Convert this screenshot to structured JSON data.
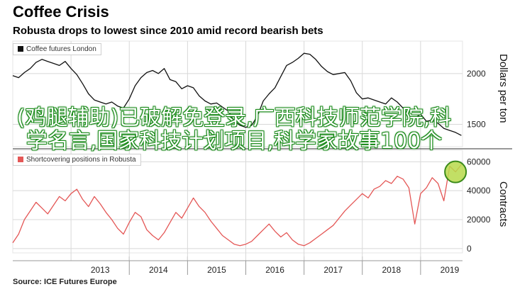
{
  "header": {
    "title": "Coffee Crisis",
    "subtitle": "Robusta drops to lowest since 2010 amid record bearish bets"
  },
  "source": "Source: ICE Futures Europe",
  "watermark": "(鸡腿辅助)已破解免登录,广西科技师范学院,科学名言,国家科技计划项目,科学家故事100个",
  "colors": {
    "top_line": "#111111",
    "bottom_line": "#e45756",
    "grid": "#d8d8d8",
    "marker_fill": "#b7d94a",
    "marker_stroke": "#3a8a1a"
  },
  "chart_data": [
    {
      "type": "line",
      "legend": "Coffee futures London",
      "ylabel": "Dollars per ton",
      "ylim": [
        1280,
        2320
      ],
      "yticks": [
        1500,
        2000
      ],
      "xlim": [
        2012.0,
        2019.72
      ],
      "xticks": [
        "2013",
        "2014",
        "2015",
        "2016",
        "2017",
        "2018",
        "2019"
      ],
      "grid": true,
      "series": [
        {
          "x": [
            2012.0,
            2012.1,
            2012.2,
            2012.3,
            2012.4,
            2012.5,
            2012.6,
            2012.7,
            2012.8,
            2012.9,
            2013.0,
            2013.1,
            2013.2,
            2013.3,
            2013.4,
            2013.5,
            2013.6,
            2013.7,
            2013.8,
            2013.9,
            2014.0,
            2014.1,
            2014.2,
            2014.3,
            2014.4,
            2014.5,
            2014.6,
            2014.7,
            2014.8,
            2014.9,
            2015.0,
            2015.1,
            2015.2,
            2015.3,
            2015.4,
            2015.5,
            2015.6,
            2015.7,
            2015.8,
            2015.9,
            2016.0,
            2016.1,
            2016.2,
            2016.3,
            2016.4,
            2016.5,
            2016.6,
            2016.7,
            2016.8,
            2016.9,
            2017.0,
            2017.1,
            2017.2,
            2017.3,
            2017.4,
            2017.5,
            2017.6,
            2017.7,
            2017.8,
            2017.9,
            2018.0,
            2018.1,
            2018.2,
            2018.3,
            2018.4,
            2018.5,
            2018.6,
            2018.7,
            2018.8,
            2018.9,
            2019.0,
            2019.1,
            2019.2,
            2019.3,
            2019.4,
            2019.5,
            2019.6,
            2019.7
          ],
          "y": [
            1980,
            1960,
            2010,
            2050,
            2110,
            2140,
            2120,
            2100,
            2080,
            2120,
            2050,
            1990,
            1900,
            1800,
            1740,
            1720,
            1700,
            1720,
            1680,
            1660,
            1750,
            1880,
            1960,
            2010,
            2030,
            2000,
            2050,
            1940,
            1920,
            1850,
            1880,
            1860,
            1780,
            1730,
            1700,
            1710,
            1670,
            1630,
            1530,
            1490,
            1470,
            1490,
            1580,
            1730,
            1800,
            1860,
            1970,
            2080,
            2110,
            2150,
            2200,
            2190,
            2140,
            2070,
            2020,
            1990,
            2000,
            2010,
            1930,
            1810,
            1750,
            1760,
            1740,
            1720,
            1700,
            1760,
            1720,
            1660,
            1580,
            1560,
            1600,
            1530,
            1540,
            1510,
            1460,
            1440,
            1420,
            1390
          ]
        }
      ]
    },
    {
      "type": "line",
      "legend": "Shortcovering positions in Robusta",
      "ylabel": "Contracts",
      "ylim": [
        -3000,
        68000
      ],
      "yticks": [
        0,
        20000,
        40000,
        60000
      ],
      "xlim": [
        2012.0,
        2019.72
      ],
      "xticks": [
        "2013",
        "2014",
        "2015",
        "2016",
        "2017",
        "2018",
        "2019"
      ],
      "grid": true,
      "highlight_point": {
        "x": 2019.6,
        "y": 53000
      },
      "series": [
        {
          "x": [
            2012.0,
            2012.1,
            2012.2,
            2012.3,
            2012.4,
            2012.5,
            2012.6,
            2012.7,
            2012.8,
            2012.9,
            2013.0,
            2013.1,
            2013.2,
            2013.3,
            2013.4,
            2013.5,
            2013.6,
            2013.7,
            2013.8,
            2013.9,
            2014.0,
            2014.1,
            2014.2,
            2014.3,
            2014.4,
            2014.5,
            2014.6,
            2014.7,
            2014.8,
            2014.9,
            2015.0,
            2015.1,
            2015.2,
            2015.3,
            2015.4,
            2015.5,
            2015.6,
            2015.7,
            2015.8,
            2015.9,
            2016.0,
            2016.1,
            2016.2,
            2016.3,
            2016.4,
            2016.5,
            2016.6,
            2016.7,
            2016.8,
            2016.9,
            2017.0,
            2017.1,
            2017.2,
            2017.3,
            2017.4,
            2017.5,
            2017.6,
            2017.7,
            2017.8,
            2017.9,
            2018.0,
            2018.1,
            2018.2,
            2018.3,
            2018.4,
            2018.5,
            2018.6,
            2018.7,
            2018.8,
            2018.9,
            2019.0,
            2019.1,
            2019.2,
            2019.3,
            2019.4,
            2019.5,
            2019.6,
            2019.7
          ],
          "y": [
            4000,
            10000,
            20000,
            26000,
            32000,
            28000,
            24000,
            30000,
            36000,
            33000,
            38000,
            41000,
            34000,
            29000,
            36000,
            31000,
            25000,
            20000,
            14000,
            10000,
            18000,
            25000,
            22000,
            13000,
            9000,
            6000,
            11000,
            18000,
            25000,
            21000,
            28000,
            35000,
            29000,
            25000,
            19000,
            14000,
            9000,
            6000,
            3000,
            2000,
            3000,
            5000,
            9000,
            13000,
            17000,
            12000,
            8000,
            11000,
            6000,
            3000,
            2000,
            4000,
            7000,
            10000,
            13000,
            16000,
            21000,
            26000,
            30000,
            34000,
            38000,
            35000,
            41000,
            43000,
            47000,
            45000,
            50000,
            48000,
            42000,
            17000,
            38000,
            42000,
            49000,
            45000,
            33000,
            57000,
            53000,
            58000
          ]
        }
      ]
    }
  ]
}
